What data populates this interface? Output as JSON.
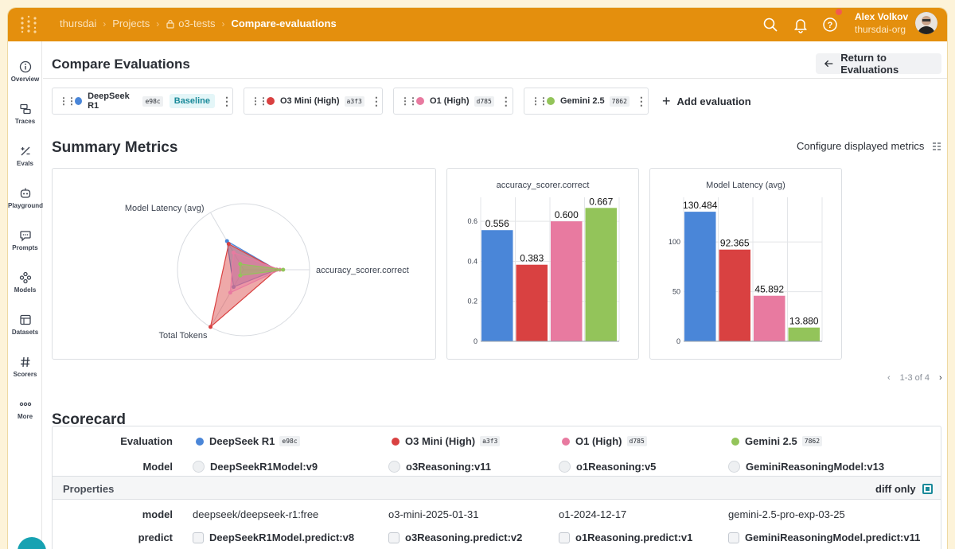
{
  "topbar": {
    "breadcrumbs": [
      "thursdai",
      "Projects",
      "o3-tests",
      "Compare-evaluations"
    ],
    "user_name": "Alex Volkov",
    "user_org": "thursdai-org"
  },
  "sidebar": {
    "items": [
      {
        "label": "Overview",
        "icon": "info-icon"
      },
      {
        "label": "Traces",
        "icon": "traces-icon"
      },
      {
        "label": "Evals",
        "icon": "evals-icon"
      },
      {
        "label": "Playground",
        "icon": "playground-icon"
      },
      {
        "label": "Prompts",
        "icon": "prompts-icon"
      },
      {
        "label": "Models",
        "icon": "models-icon"
      },
      {
        "label": "Datasets",
        "icon": "datasets-icon"
      },
      {
        "label": "Scorers",
        "icon": "scorers-icon"
      },
      {
        "label": "More",
        "icon": "more-icon"
      }
    ]
  },
  "header": {
    "title": "Compare Evaluations",
    "return_label": "Return to Evaluations"
  },
  "evaluations": [
    {
      "name": "DeepSeek R1",
      "hash": "e98c",
      "color": "#4a86d8",
      "baseline": "Baseline",
      "model": "DeepSeekR1Model:v9",
      "model_prop": "deepseek/deepseek-r1:free",
      "predict": "DeepSeekR1Model.predict:v8"
    },
    {
      "name": "O3 Mini (High)",
      "hash": "a3f3",
      "color": "#d94141",
      "model": "o3Reasoning:v11",
      "model_prop": "o3-mini-2025-01-31",
      "predict": "o3Reasoning.predict:v2"
    },
    {
      "name": "O1 (High)",
      "hash": "d785",
      "color": "#e87aa0",
      "model": "o1Reasoning:v5",
      "model_prop": "o1-2024-12-17",
      "predict": "o1Reasoning.predict:v1"
    },
    {
      "name": "Gemini 2.5",
      "hash": "7862",
      "color": "#93c45a",
      "model": "GeminiReasoningModel:v13",
      "model_prop": "gemini-2.5-pro-exp-03-25",
      "predict": "GeminiReasoningModel.predict:v11"
    }
  ],
  "add_evaluation_label": "Add evaluation",
  "summary": {
    "title": "Summary Metrics",
    "configure_label": "Configure displayed metrics",
    "pager": "1-3 of 4"
  },
  "chart_data": [
    {
      "type": "radar",
      "axes": [
        "Model Latency (avg)",
        "accuracy_scorer.correct",
        "Total Tokens"
      ],
      "series": [
        {
          "name": "DeepSeek R1",
          "values": [
            0.5,
            0.5,
            0.3
          ]
        },
        {
          "name": "O3 Mini (High)",
          "values": [
            0.45,
            0.5,
            1.0
          ]
        },
        {
          "name": "O1 (High)",
          "values": [
            0.3,
            0.55,
            0.4
          ]
        },
        {
          "name": "Gemini 2.5",
          "values": [
            0.1,
            0.6,
            0.1
          ]
        }
      ]
    },
    {
      "type": "bar",
      "title": "accuracy_scorer.correct",
      "categories": [
        "DeepSeek R1",
        "O3 Mini (High)",
        "O1 (High)",
        "Gemini 2.5"
      ],
      "values": [
        0.556,
        0.383,
        0.6,
        0.667
      ],
      "labels": [
        "0.556",
        "0.383",
        "0.600",
        "0.667"
      ],
      "ylim": [
        0,
        0.72
      ],
      "yticks": [
        0,
        0.2,
        0.4,
        0.6
      ],
      "ytick_labels": [
        "0",
        "0.2",
        "0.4",
        "0.6"
      ]
    },
    {
      "type": "bar",
      "title": "Model Latency (avg)",
      "categories": [
        "DeepSeek R1",
        "O3 Mini (High)",
        "O1 (High)",
        "Gemini 2.5"
      ],
      "values": [
        130.484,
        92.365,
        45.892,
        13.88
      ],
      "labels": [
        "130.484",
        "92.365",
        "45.892",
        "13.880"
      ],
      "ylim": [
        0,
        145
      ],
      "yticks": [
        0,
        50,
        100
      ],
      "ytick_labels": [
        "0",
        "50",
        "100"
      ]
    }
  ],
  "scorecard": {
    "title": "Scorecard",
    "evaluation_label": "Evaluation",
    "model_label": "Model",
    "properties_label": "Properties",
    "diff_only_label": "diff only",
    "prop_rows": [
      "model",
      "predict"
    ]
  }
}
